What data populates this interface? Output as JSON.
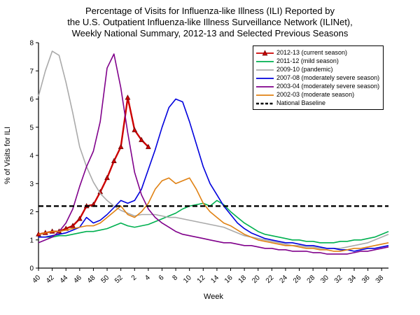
{
  "chart_data": {
    "type": "line",
    "title_lines": [
      "Percentage of Visits for Influenza-like Illness (ILI) Reported by",
      "the U.S. Outpatient Influenza-like Illness Surveillance Network (ILINet),",
      "Weekly National Summary, 2012-13 and Selected Previous Seasons"
    ],
    "xlabel": "Week",
    "ylabel": "% of Visits for ILI",
    "ylim": [
      0,
      8
    ],
    "y_tick_step": 1,
    "weeks": [
      "40",
      "41",
      "42",
      "43",
      "44",
      "45",
      "46",
      "47",
      "48",
      "49",
      "50",
      "51",
      "52",
      "1",
      "2",
      "3",
      "4",
      "5",
      "6",
      "7",
      "8",
      "9",
      "10",
      "11",
      "12",
      "13",
      "14",
      "15",
      "16",
      "17",
      "18",
      "19",
      "20",
      "21",
      "22",
      "23",
      "24",
      "25",
      "26",
      "27",
      "28",
      "29",
      "30",
      "31",
      "32",
      "33",
      "34",
      "35",
      "36",
      "37",
      "38",
      "39"
    ],
    "baseline": {
      "label": "National Baseline",
      "value": 2.2,
      "color": "#000000"
    },
    "series": [
      {
        "id": "2012-13",
        "name": "2012-13 (current season)",
        "color": "#cc0000",
        "marker": "triangle",
        "width": 2.4,
        "values": [
          1.2,
          1.25,
          1.3,
          1.3,
          1.4,
          1.5,
          1.75,
          2.2,
          2.25,
          2.7,
          3.2,
          3.8,
          4.3,
          6.05,
          4.9,
          4.55,
          4.3,
          null,
          null,
          null,
          null,
          null,
          null,
          null,
          null,
          null,
          null,
          null,
          null,
          null,
          null,
          null,
          null,
          null,
          null,
          null,
          null,
          null,
          null,
          null,
          null,
          null,
          null,
          null,
          null,
          null,
          null,
          null,
          null,
          null,
          null,
          null
        ]
      },
      {
        "id": "2011-12",
        "name": "2011-12 (mild season)",
        "color": "#00b050",
        "marker": null,
        "width": 1.6,
        "values": [
          1.1,
          1.1,
          1.1,
          1.15,
          1.15,
          1.2,
          1.25,
          1.3,
          1.3,
          1.35,
          1.4,
          1.5,
          1.6,
          1.5,
          1.45,
          1.5,
          1.55,
          1.65,
          1.75,
          1.85,
          1.95,
          2.1,
          2.2,
          2.25,
          2.3,
          2.2,
          2.4,
          2.25,
          2.0,
          1.8,
          1.6,
          1.45,
          1.3,
          1.2,
          1.15,
          1.1,
          1.05,
          1.0,
          1.0,
          0.95,
          0.95,
          0.9,
          0.9,
          0.9,
          0.95,
          0.95,
          1.0,
          1.0,
          1.05,
          1.1,
          1.2,
          1.3
        ]
      },
      {
        "id": "2009-10",
        "name": "2009-10 (pandemic)",
        "color": "#aaaaaa",
        "marker": null,
        "width": 1.6,
        "values": [
          6.1,
          7.0,
          7.7,
          7.55,
          6.6,
          5.5,
          4.3,
          3.6,
          3.05,
          2.65,
          2.4,
          2.2,
          2.05,
          1.95,
          1.85,
          1.9,
          1.9,
          1.9,
          1.85,
          1.8,
          1.8,
          1.75,
          1.7,
          1.65,
          1.6,
          1.55,
          1.5,
          1.45,
          1.35,
          1.25,
          1.15,
          1.1,
          1.05,
          1.0,
          0.95,
          0.9,
          0.85,
          0.8,
          0.8,
          0.75,
          0.75,
          0.7,
          0.7,
          0.7,
          0.7,
          0.75,
          0.8,
          0.85,
          0.9,
          1.0,
          1.1,
          1.2
        ]
      },
      {
        "id": "2007-08",
        "name": "2007-08 (moderately severe season)",
        "color": "#0000dd",
        "marker": null,
        "width": 1.6,
        "values": [
          1.1,
          1.1,
          1.15,
          1.2,
          1.25,
          1.35,
          1.45,
          1.8,
          1.6,
          1.7,
          1.9,
          2.15,
          2.4,
          2.3,
          2.4,
          2.8,
          3.5,
          4.2,
          5.0,
          5.7,
          6.0,
          5.9,
          5.2,
          4.4,
          3.6,
          3.0,
          2.6,
          2.2,
          1.9,
          1.6,
          1.4,
          1.25,
          1.15,
          1.05,
          1.0,
          0.95,
          0.9,
          0.9,
          0.85,
          0.8,
          0.8,
          0.75,
          0.7,
          0.7,
          0.65,
          0.65,
          0.6,
          0.65,
          0.7,
          0.7,
          0.75,
          0.8
        ]
      },
      {
        "id": "2003-04",
        "name": "2003-04 (moderately severe season)",
        "color": "#80008b",
        "marker": null,
        "width": 1.6,
        "values": [
          0.9,
          1.0,
          1.1,
          1.3,
          1.6,
          2.1,
          2.9,
          3.6,
          4.15,
          5.2,
          7.1,
          7.6,
          6.4,
          4.8,
          3.4,
          2.6,
          2.1,
          1.8,
          1.6,
          1.45,
          1.3,
          1.2,
          1.15,
          1.1,
          1.05,
          1.0,
          0.95,
          0.9,
          0.9,
          0.85,
          0.8,
          0.8,
          0.75,
          0.7,
          0.7,
          0.65,
          0.65,
          0.6,
          0.6,
          0.6,
          0.55,
          0.55,
          0.5,
          0.5,
          0.5,
          0.5,
          0.55,
          0.6,
          0.6,
          0.65,
          0.7,
          0.75
        ]
      },
      {
        "id": "2002-03",
        "name": "2002-03 (moderate season)",
        "color": "#e08214",
        "marker": null,
        "width": 1.6,
        "values": [
          1.2,
          1.25,
          1.3,
          1.3,
          1.35,
          1.4,
          1.45,
          1.5,
          1.5,
          1.6,
          1.8,
          2.0,
          2.2,
          1.9,
          1.8,
          2.0,
          2.3,
          2.8,
          3.1,
          3.2,
          3.0,
          3.1,
          3.2,
          2.8,
          2.3,
          2.0,
          1.8,
          1.6,
          1.5,
          1.35,
          1.2,
          1.1,
          1.0,
          0.95,
          0.9,
          0.85,
          0.8,
          0.8,
          0.75,
          0.7,
          0.7,
          0.65,
          0.65,
          0.6,
          0.6,
          0.65,
          0.7,
          0.7,
          0.75,
          0.8,
          0.85,
          0.9
        ]
      }
    ]
  }
}
